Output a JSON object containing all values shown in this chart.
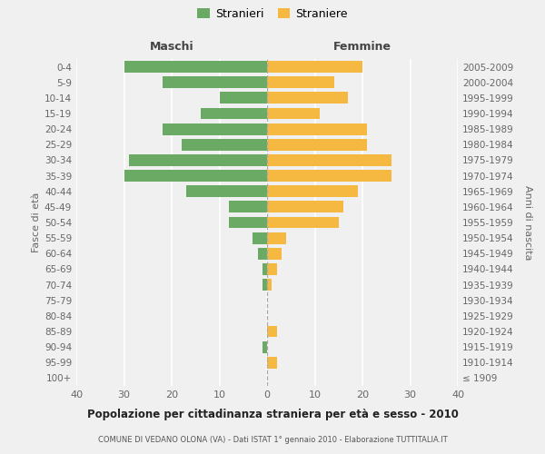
{
  "age_groups": [
    "100+",
    "95-99",
    "90-94",
    "85-89",
    "80-84",
    "75-79",
    "70-74",
    "65-69",
    "60-64",
    "55-59",
    "50-54",
    "45-49",
    "40-44",
    "35-39",
    "30-34",
    "25-29",
    "20-24",
    "15-19",
    "10-14",
    "5-9",
    "0-4"
  ],
  "birth_years": [
    "≤ 1909",
    "1910-1914",
    "1915-1919",
    "1920-1924",
    "1925-1929",
    "1930-1934",
    "1935-1939",
    "1940-1944",
    "1945-1949",
    "1950-1954",
    "1955-1959",
    "1960-1964",
    "1965-1969",
    "1970-1974",
    "1975-1979",
    "1980-1984",
    "1985-1989",
    "1990-1994",
    "1995-1999",
    "2000-2004",
    "2005-2009"
  ],
  "maschi": [
    0,
    0,
    1,
    0,
    0,
    0,
    1,
    1,
    2,
    3,
    8,
    8,
    17,
    30,
    29,
    18,
    22,
    14,
    10,
    22,
    30
  ],
  "femmine": [
    0,
    2,
    0,
    2,
    0,
    0,
    1,
    2,
    3,
    4,
    15,
    16,
    19,
    26,
    26,
    21,
    21,
    11,
    17,
    14,
    20
  ],
  "color_maschi": "#6aaa64",
  "color_femmine": "#f5b942",
  "title_main": "Popolazione per cittadinanza straniera per età e sesso - 2010",
  "title_sub": "COMUNE DI VEDANO OLONA (VA) - Dati ISTAT 1° gennaio 2010 - Elaborazione TUTTITALIA.IT",
  "label_maschi": "Maschi",
  "label_femmine": "Femmine",
  "legend_stranieri": "Stranieri",
  "legend_straniere": "Straniere",
  "ylabel_left": "Fasce di età",
  "ylabel_right": "Anni di nascita",
  "xlim": 40,
  "background_color": "#f0f0f0",
  "grid_color": "#ffffff",
  "text_color": "#666666"
}
